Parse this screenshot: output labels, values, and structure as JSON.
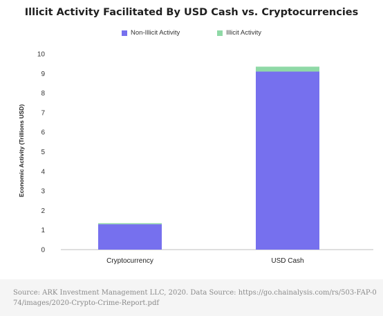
{
  "chart_data": {
    "type": "bar",
    "stacked": true,
    "title": "Illicit Activity Facilitated By USD Cash vs. Cryptocurrencies",
    "xlabel": "",
    "ylabel": "Economic Activity (Trillions USD)",
    "categories": [
      "Cryptocurrency",
      "USD Cash"
    ],
    "series": [
      {
        "name": "Non-Illicit Activity",
        "color": "#7670ee",
        "values": [
          1.3,
          9.1
        ]
      },
      {
        "name": "Illicit Activity",
        "color": "#8fd9a6",
        "values": [
          0.05,
          0.25
        ]
      }
    ],
    "ylim": [
      0,
      10
    ],
    "yticks": [
      0,
      1,
      2,
      3,
      4,
      5,
      6,
      7,
      8,
      9,
      10
    ],
    "grid": false,
    "legend_position": "top-center"
  },
  "source_note": "Source: ARK Investment Management LLC, 2020. Data Source: https://go.chainalysis.com/rs/503-FAP-074/images/2020-Crypto-Crime-Report.pdf"
}
